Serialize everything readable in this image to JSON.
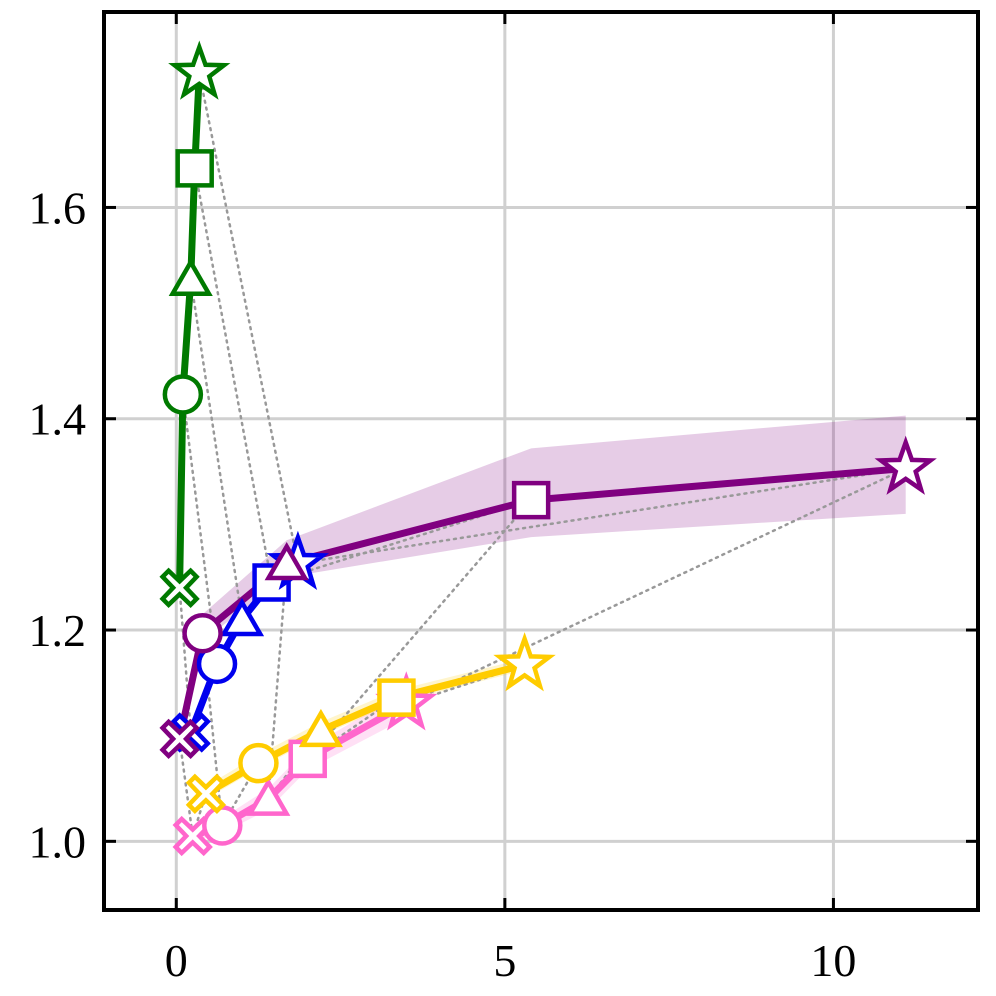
{
  "chart_data": {
    "type": "line",
    "title": "",
    "xlabel": "",
    "ylabel": "",
    "xlim": [
      -1.1,
      12.2
    ],
    "ylim": [
      0.935,
      1.785
    ],
    "xticks": [
      0,
      5,
      10
    ],
    "xtick_labels": [
      "0",
      "5",
      "10"
    ],
    "yticks": [
      1.0,
      1.2,
      1.4,
      1.6
    ],
    "ytick_labels": [
      "1.0",
      "1.2",
      "1.4",
      "1.6"
    ],
    "grid": true,
    "markers": [
      "cross",
      "circle",
      "triangle",
      "square",
      "star"
    ],
    "series": [
      {
        "color": "#007a00",
        "x": [
          0.05,
          0.1,
          0.22,
          0.28,
          0.35
        ],
        "y": [
          1.24,
          1.423,
          1.532,
          1.637,
          1.727
        ],
        "band_lo": [
          1.24,
          1.423,
          1.532,
          1.637,
          1.727
        ],
        "band_hi": [
          1.24,
          1.423,
          1.532,
          1.637,
          1.727
        ]
      },
      {
        "color": "#0000ee",
        "x": [
          0.22,
          0.62,
          1.0,
          1.45,
          1.85
        ],
        "y": [
          1.103,
          1.168,
          1.21,
          1.245,
          1.263
        ],
        "band_lo": [
          1.1,
          1.163,
          1.205,
          1.24,
          1.258
        ],
        "band_hi": [
          1.106,
          1.173,
          1.215,
          1.25,
          1.268
        ]
      },
      {
        "color": "#800080",
        "x": [
          0.05,
          0.4,
          1.68,
          5.4,
          11.1
        ],
        "y": [
          1.097,
          1.197,
          1.263,
          1.323,
          1.353
        ],
        "band_lo": [
          1.095,
          1.19,
          1.25,
          1.288,
          1.31
        ],
        "band_hi": [
          1.1,
          1.215,
          1.285,
          1.372,
          1.403
        ]
      },
      {
        "color": "#ff66cc",
        "x": [
          0.25,
          0.7,
          1.4,
          2.0,
          3.5
        ],
        "y": [
          1.005,
          1.015,
          1.04,
          1.078,
          1.13
        ],
        "band_lo": [
          1.0,
          1.008,
          1.03,
          1.068,
          1.117
        ],
        "band_hi": [
          1.01,
          1.022,
          1.05,
          1.088,
          1.143
        ]
      },
      {
        "color": "#ffcc00",
        "x": [
          0.45,
          1.25,
          2.2,
          3.35,
          5.3
        ],
        "y": [
          1.045,
          1.074,
          1.105,
          1.136,
          1.167
        ],
        "band_lo": [
          1.04,
          1.069,
          1.1,
          1.131,
          1.162
        ],
        "band_hi": [
          1.052,
          1.082,
          1.113,
          1.143,
          1.173
        ]
      }
    ],
    "connectors": [
      {
        "color": "#999999",
        "x": [
          0.05,
          0.22,
          0.05,
          0.25,
          0.45
        ],
        "y": [
          1.24,
          1.103,
          1.097,
          1.005,
          1.045
        ]
      },
      {
        "color": "#999999",
        "x": [
          0.1,
          0.62,
          0.4,
          0.7,
          1.25
        ],
        "y": [
          1.423,
          1.168,
          1.197,
          1.015,
          1.074
        ]
      },
      {
        "color": "#999999",
        "x": [
          0.22,
          1.0,
          1.68,
          1.4,
          2.2
        ],
        "y": [
          1.532,
          1.21,
          1.263,
          1.04,
          1.105
        ]
      },
      {
        "color": "#999999",
        "x": [
          0.28,
          1.45,
          5.4,
          2.0,
          3.35
        ],
        "y": [
          1.637,
          1.245,
          1.323,
          1.078,
          1.136
        ]
      },
      {
        "color": "#999999",
        "x": [
          0.35,
          1.85,
          11.1,
          3.5,
          5.3
        ],
        "y": [
          1.727,
          1.263,
          1.353,
          1.13,
          1.167
        ]
      }
    ]
  }
}
